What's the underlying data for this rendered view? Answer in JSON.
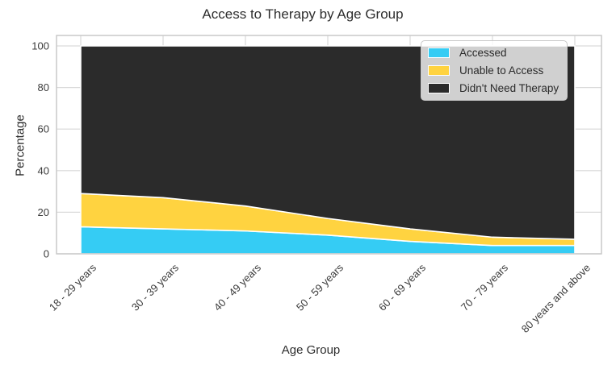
{
  "chart_data": {
    "type": "area",
    "stacked": true,
    "title": "Access to Therapy by Age Group",
    "xlabel": "Age Group",
    "ylabel": "Percentage",
    "categories": [
      "18 - 29 years",
      "30 - 39 years",
      "40 - 49 years",
      "50 - 59 years",
      "60 - 69 years",
      "70 - 79 years",
      "80 years and above"
    ],
    "series": [
      {
        "name": "Accessed",
        "color": "#35CCF4",
        "values": [
          13,
          12,
          11,
          9,
          6,
          4,
          4
        ]
      },
      {
        "name": "Unable to Access",
        "color": "#FFD340",
        "values": [
          16,
          15,
          12,
          8,
          6,
          4,
          3
        ]
      },
      {
        "name": "Didn't Need Therapy",
        "color": "#2B2B2B",
        "values": [
          71,
          73,
          77,
          83,
          88,
          92,
          93
        ]
      }
    ],
    "yticks": [
      0,
      20,
      40,
      60,
      80,
      100
    ],
    "ylim": [
      0,
      105
    ],
    "grid": true,
    "legend_position": "upper right",
    "edge_color": "#FFFFFF",
    "x_tick_rotation_deg": 45
  },
  "colors": {
    "grid": "#D9D9D9",
    "frame": "#C9C9C9",
    "tick": "#3B3B3B",
    "text": "#2E2E2E",
    "plot_background": "#FFFFFF"
  }
}
